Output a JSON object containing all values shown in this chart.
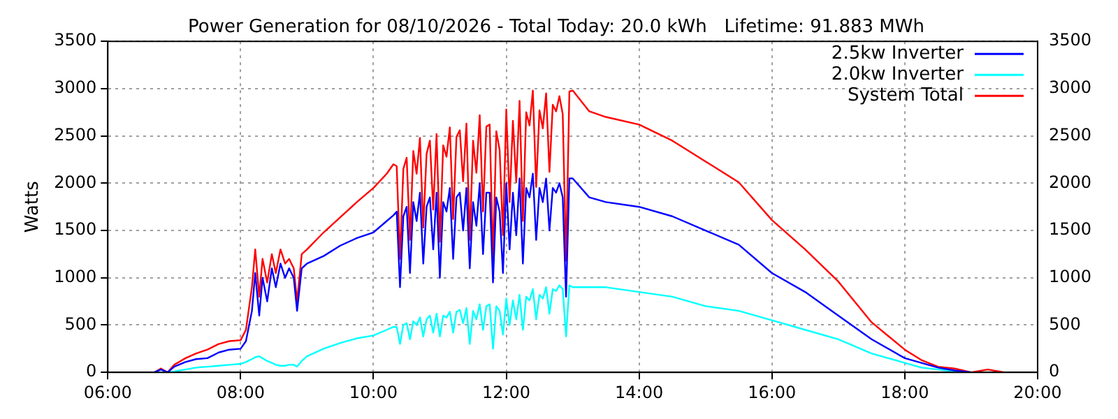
{
  "chart_data": {
    "type": "line",
    "title": "Power Generation for 08/10/2026 - Total Today: 20.0 kWh   Lifetime: 91.883 MWh",
    "ylabel": "Watts",
    "x": [
      6.7,
      6.8,
      6.9,
      7.0,
      7.17,
      7.33,
      7.5,
      7.67,
      7.83,
      8.0,
      8.08,
      8.17,
      8.22,
      8.28,
      8.33,
      8.4,
      8.47,
      8.53,
      8.6,
      8.67,
      8.73,
      8.8,
      8.85,
      8.92,
      9.0,
      9.25,
      9.5,
      9.75,
      10.0,
      10.2,
      10.3,
      10.35,
      10.4,
      10.45,
      10.5,
      10.55,
      10.6,
      10.65,
      10.7,
      10.75,
      10.8,
      10.85,
      10.9,
      10.95,
      11.0,
      11.05,
      11.1,
      11.15,
      11.2,
      11.25,
      11.3,
      11.35,
      11.4,
      11.45,
      11.5,
      11.55,
      11.6,
      11.65,
      11.7,
      11.75,
      11.8,
      11.85,
      11.9,
      11.95,
      12.0,
      12.05,
      12.1,
      12.15,
      12.2,
      12.25,
      12.3,
      12.35,
      12.4,
      12.45,
      12.5,
      12.55,
      12.6,
      12.65,
      12.7,
      12.75,
      12.8,
      12.85,
      12.9,
      12.95,
      13.0,
      13.25,
      13.5,
      14.0,
      14.5,
      15.0,
      15.5,
      16.0,
      16.5,
      17.0,
      17.5,
      18.0,
      18.25,
      18.5,
      18.75,
      19.0,
      19.25,
      19.5
    ],
    "series": [
      {
        "name": "2.5kw Inverter",
        "color": "#0000ff",
        "values": [
          0,
          30,
          0,
          60,
          110,
          140,
          150,
          210,
          240,
          250,
          330,
          650,
          1050,
          600,
          1000,
          750,
          1100,
          900,
          1150,
          1000,
          1100,
          1000,
          650,
          1100,
          1150,
          1230,
          1340,
          1420,
          1480,
          1600,
          1660,
          1700,
          900,
          1650,
          1750,
          1050,
          1800,
          1600,
          1900,
          1150,
          1750,
          1850,
          1300,
          1900,
          1000,
          1800,
          1700,
          1950,
          1200,
          1850,
          1900,
          1500,
          1950,
          1100,
          1800,
          1550,
          2000,
          1250,
          1900,
          1900,
          950,
          1850,
          1700,
          1050,
          2000,
          1300,
          1900,
          1450,
          2050,
          1150,
          1950,
          1850,
          2100,
          1400,
          1950,
          1800,
          2050,
          1500,
          1950,
          1900,
          2000,
          1850,
          800,
          2050,
          2050,
          1850,
          1800,
          1750,
          1650,
          1500,
          1350,
          1050,
          850,
          600,
          350,
          150,
          100,
          50,
          20,
          0,
          null,
          null
        ]
      },
      {
        "name": "2.0kw Inverter",
        "color": "#00ffff",
        "values": [
          0,
          0,
          0,
          10,
          30,
          50,
          60,
          70,
          80,
          90,
          110,
          140,
          160,
          170,
          150,
          120,
          100,
          80,
          70,
          70,
          80,
          80,
          60,
          120,
          170,
          250,
          310,
          360,
          390,
          450,
          480,
          480,
          300,
          500,
          520,
          350,
          540,
          500,
          580,
          380,
          560,
          600,
          420,
          620,
          380,
          600,
          580,
          640,
          420,
          640,
          660,
          520,
          680,
          300,
          650,
          560,
          720,
          450,
          700,
          720,
          250,
          700,
          650,
          400,
          780,
          500,
          760,
          560,
          820,
          450,
          800,
          760,
          880,
          560,
          820,
          780,
          900,
          620,
          880,
          860,
          920,
          880,
          380,
          920,
          900,
          900,
          900,
          850,
          800,
          700,
          650,
          550,
          450,
          350,
          200,
          100,
          50,
          30,
          10,
          0,
          null,
          null
        ]
      },
      {
        "name": "System Total",
        "color": "#ff0000",
        "values": [
          0,
          40,
          0,
          80,
          150,
          200,
          240,
          300,
          330,
          340,
          450,
          900,
          1300,
          800,
          1200,
          950,
          1250,
          1050,
          1300,
          1150,
          1200,
          1100,
          750,
          1250,
          1300,
          1480,
          1640,
          1800,
          1950,
          2100,
          2200,
          2180,
          1200,
          2150,
          2270,
          1400,
          2340,
          2100,
          2480,
          1530,
          2310,
          2450,
          1720,
          2520,
          1380,
          2400,
          2280,
          2590,
          1620,
          2490,
          2560,
          2020,
          2630,
          1400,
          2450,
          2110,
          2720,
          1700,
          2600,
          2620,
          1200,
          2550,
          2350,
          1450,
          2780,
          1800,
          2660,
          2010,
          2870,
          1600,
          2750,
          2610,
          2980,
          1960,
          2770,
          2580,
          2950,
          2120,
          2830,
          2760,
          2920,
          2730,
          1180,
          2970,
          2980,
          2760,
          2700,
          2620,
          2450,
          2230,
          2010,
          1610,
          1300,
          960,
          530,
          240,
          130,
          60,
          40,
          0,
          30,
          0
        ]
      }
    ],
    "xlim": [
      6,
      20
    ],
    "xticks": [
      {
        "value": 6,
        "label": "06:00"
      },
      {
        "value": 8,
        "label": "08:00"
      },
      {
        "value": 10,
        "label": "10:00"
      },
      {
        "value": 12,
        "label": "12:00"
      },
      {
        "value": 14,
        "label": "14:00"
      },
      {
        "value": 16,
        "label": "16:00"
      },
      {
        "value": 18,
        "label": "18:00"
      },
      {
        "value": 20,
        "label": "20:00"
      }
    ],
    "ylim": [
      0,
      3500
    ],
    "yticks": [
      0,
      500,
      1000,
      1500,
      2000,
      2500,
      3000,
      3500
    ],
    "y2lim": [
      0,
      3500
    ],
    "y2ticks": [
      0,
      500,
      1000,
      1500,
      2000,
      2500,
      3000,
      3500
    ],
    "grid": true,
    "legend": "top right",
    "marker": "none",
    "line_style": "solid"
  }
}
